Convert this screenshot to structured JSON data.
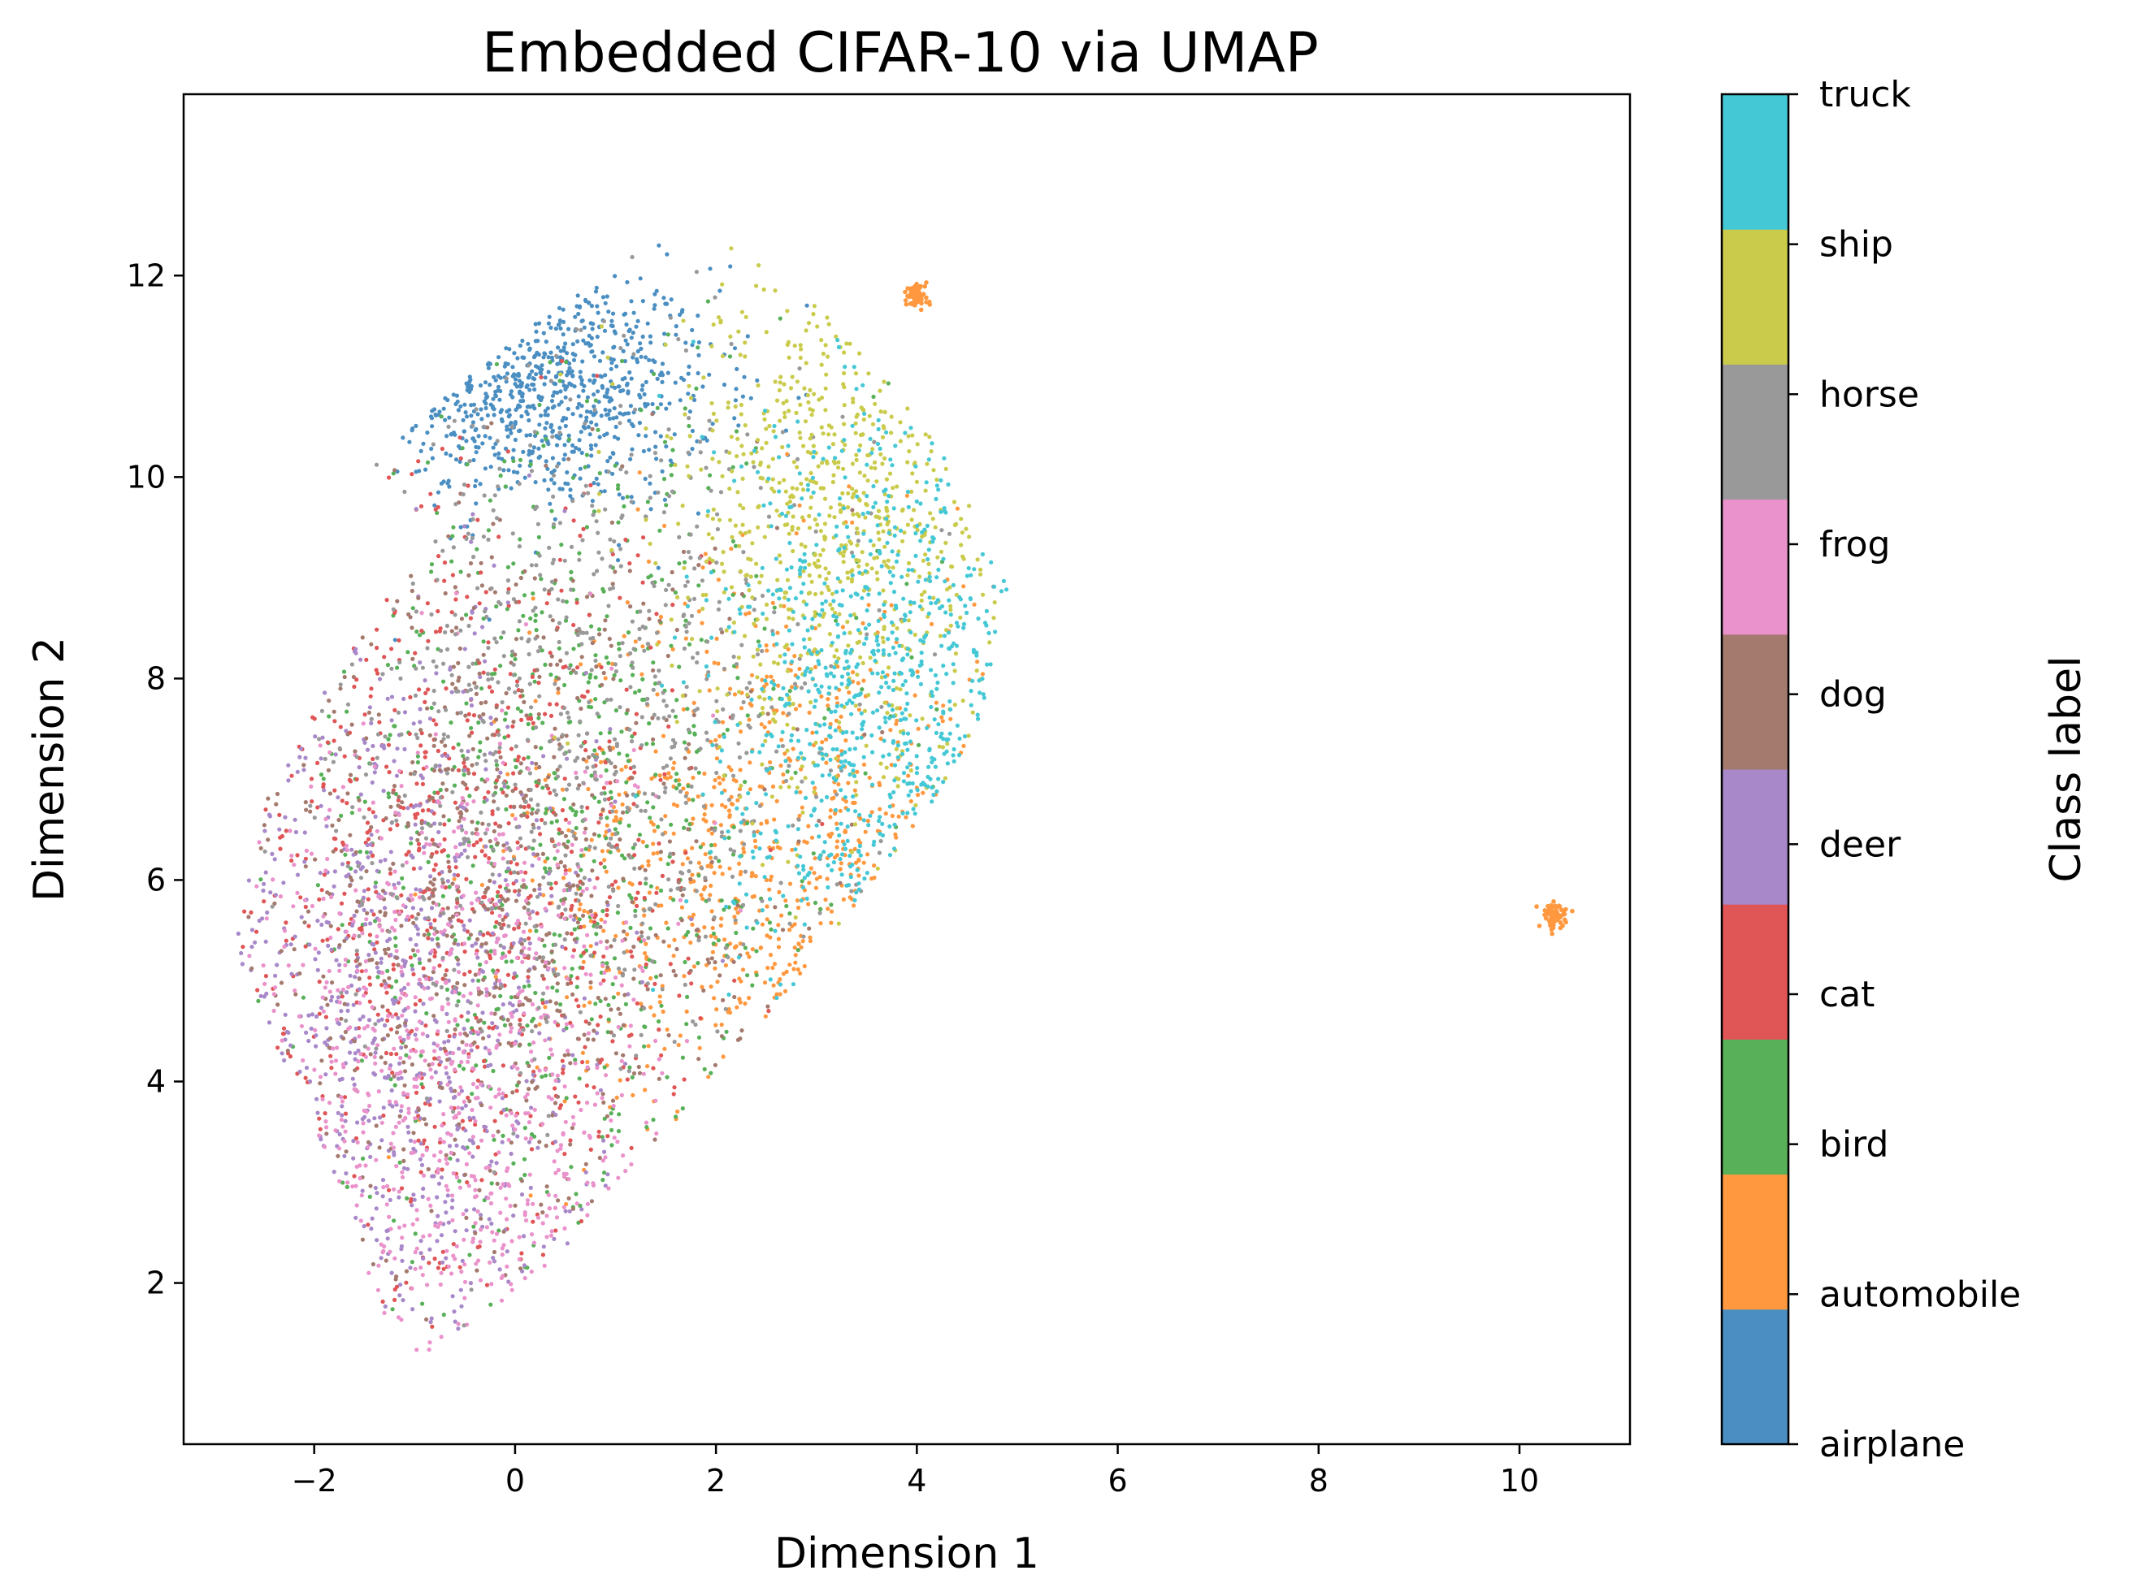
{
  "chart_data": {
    "type": "scatter",
    "title": "Embedded CIFAR-10 via UMAP",
    "xlabel": "Dimension 1",
    "ylabel": "Dimension 2",
    "xlim": [
      -3.3,
      11.1
    ],
    "ylim": [
      0.4,
      13.8
    ],
    "xticks": [
      -2,
      0,
      2,
      4,
      6,
      8,
      10
    ],
    "xtick_labels": [
      "−2",
      "0",
      "2",
      "4",
      "6",
      "8",
      "10"
    ],
    "yticks": [
      2,
      4,
      6,
      8,
      10,
      12
    ],
    "ytick_labels": [
      "2",
      "4",
      "6",
      "8",
      "10",
      "12"
    ],
    "grid": false,
    "colorbar": {
      "label": "Class label",
      "classes": [
        "airplane",
        "automobile",
        "bird",
        "cat",
        "deer",
        "dog",
        "frog",
        "horse",
        "ship",
        "truck"
      ],
      "colors": [
        "#4b8fc2",
        "#ff983e",
        "#58b158",
        "#e05556",
        "#a888c9",
        "#a57a6e",
        "#ea92cb",
        "#999999",
        "#cacb4b",
        "#45c8d5"
      ]
    },
    "main_cluster_outline": [
      [
        -1.5,
        10.05
      ],
      [
        -0.6,
        10.9
      ],
      [
        0.3,
        11.6
      ],
      [
        1.2,
        12.3
      ],
      [
        1.8,
        12.7
      ],
      [
        2.4,
        12.2
      ],
      [
        3.0,
        11.7
      ],
      [
        3.5,
        11.2
      ],
      [
        4.1,
        10.5
      ],
      [
        4.5,
        9.8
      ],
      [
        4.9,
        8.9
      ],
      [
        4.8,
        8.3
      ],
      [
        4.6,
        7.5
      ],
      [
        4.1,
        6.7
      ],
      [
        3.5,
        5.9
      ],
      [
        2.8,
        5.0
      ],
      [
        2.2,
        4.3
      ],
      [
        1.6,
        3.6
      ],
      [
        0.9,
        2.9
      ],
      [
        0.4,
        2.2
      ],
      [
        -0.3,
        1.7
      ],
      [
        -0.9,
        1.3
      ],
      [
        -1.2,
        1.4
      ],
      [
        -1.4,
        1.9
      ],
      [
        -1.7,
        2.8
      ],
      [
        -2.1,
        3.8
      ],
      [
        -2.6,
        4.8
      ],
      [
        -2.8,
        5.3
      ],
      [
        -2.7,
        6.3
      ],
      [
        -2.3,
        7.2
      ],
      [
        -1.7,
        8.2
      ],
      [
        -1.2,
        8.9
      ],
      [
        -0.8,
        9.3
      ],
      [
        -1.0,
        9.7
      ],
      [
        -1.5,
        10.05
      ]
    ],
    "class_regions": [
      {
        "class": "airplane",
        "center": [
          0.2,
          10.9
        ],
        "spread": [
          0.9,
          0.6
        ]
      },
      {
        "class": "automobile",
        "center": [
          2.6,
          6.2
        ],
        "spread": [
          1.2,
          1.4
        ]
      },
      {
        "class": "bird",
        "center": [
          0.6,
          6.5
        ],
        "spread": [
          1.5,
          2.3
        ]
      },
      {
        "class": "cat",
        "center": [
          -0.6,
          5.8
        ],
        "spread": [
          1.2,
          2.1
        ]
      },
      {
        "class": "deer",
        "center": [
          -1.2,
          4.5
        ],
        "spread": [
          1.0,
          2.0
        ]
      },
      {
        "class": "dog",
        "center": [
          -0.2,
          6.0
        ],
        "spread": [
          1.3,
          2.0
        ]
      },
      {
        "class": "frog",
        "center": [
          -0.6,
          3.8
        ],
        "spread": [
          1.1,
          1.8
        ]
      },
      {
        "class": "horse",
        "center": [
          0.8,
          7.8
        ],
        "spread": [
          1.4,
          1.9
        ]
      },
      {
        "class": "ship",
        "center": [
          3.3,
          9.6
        ],
        "spread": [
          0.9,
          1.4
        ]
      },
      {
        "class": "truck",
        "center": [
          3.7,
          7.8
        ],
        "spread": [
          0.8,
          1.5
        ]
      }
    ],
    "outlier_clusters": [
      {
        "class": "automobile",
        "center": [
          4.0,
          11.8
        ],
        "spread": [
          0.05,
          0.06
        ]
      },
      {
        "class": "automobile",
        "center": [
          10.35,
          5.65
        ],
        "spread": [
          0.06,
          0.06
        ]
      }
    ]
  }
}
